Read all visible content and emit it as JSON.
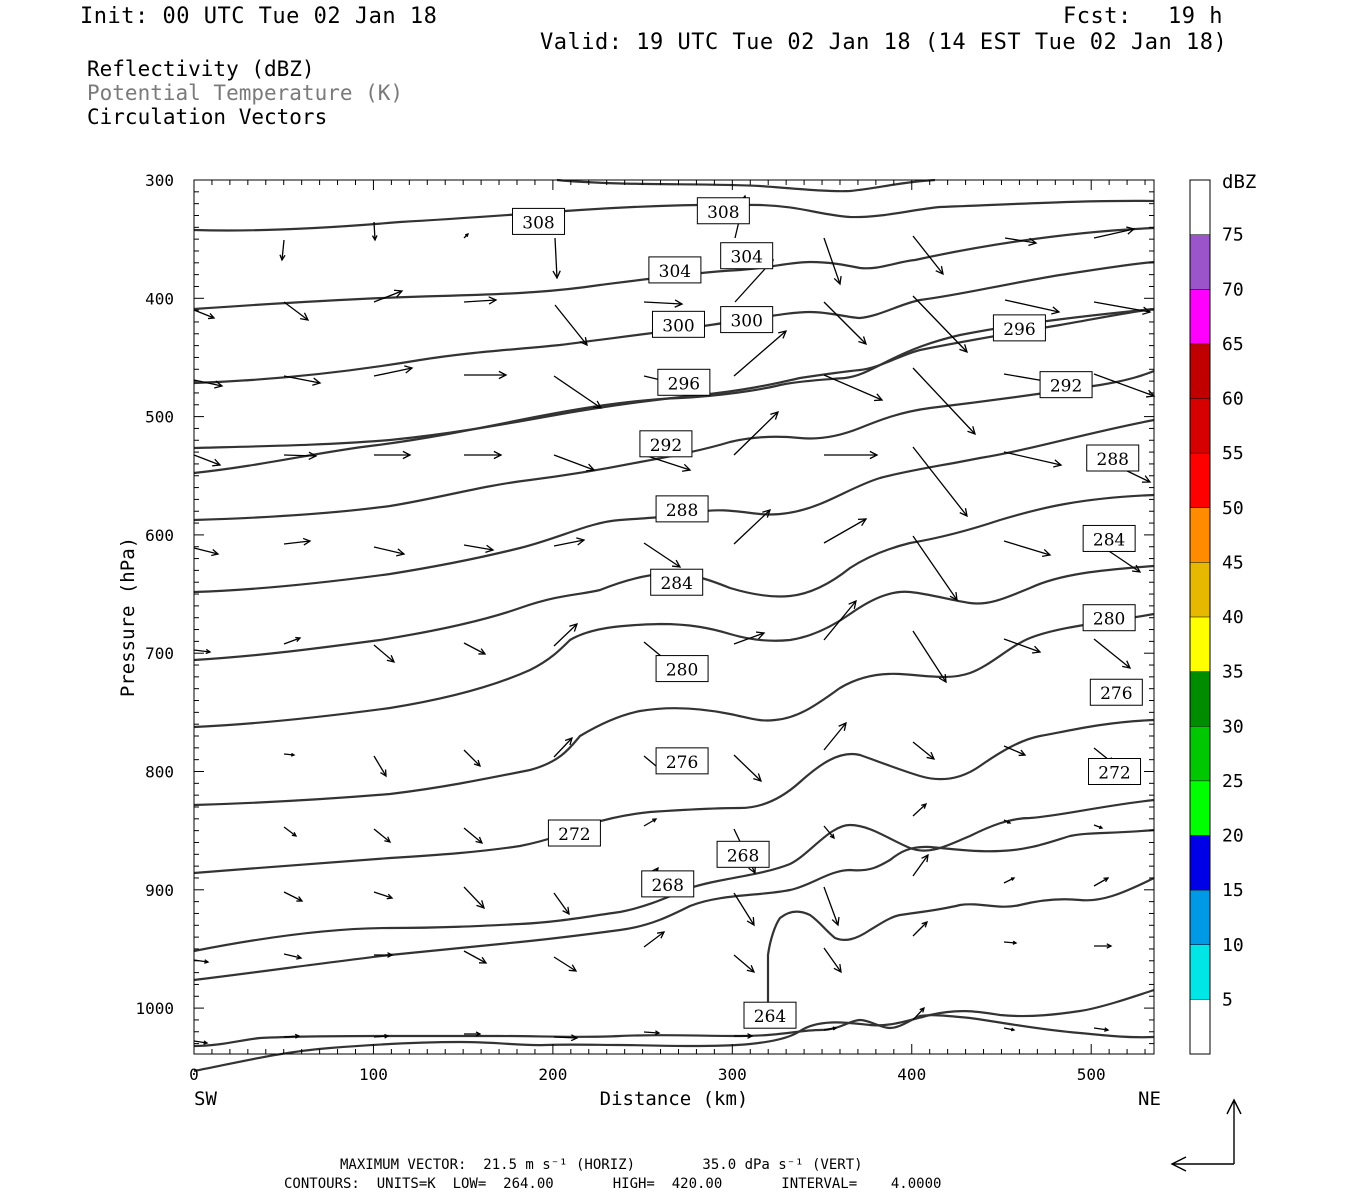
{
  "header": {
    "init": "Init: 00 UTC Tue 02 Jan 18",
    "fcst_label": "Fcst:",
    "fcst_value": "19 h",
    "valid": "Valid: 19 UTC Tue 02 Jan 18 (14 EST Tue 02 Jan 18)"
  },
  "legend": {
    "line1": "Reflectivity (dBZ)",
    "line2": "Potential Temperature (K)",
    "line3": "Circulation Vectors"
  },
  "footer": {
    "max_vector": "MAXIMUM VECTOR:  21.5 m s⁻¹ (HORIZ)        35.0 dPa s⁻¹ (VERT)",
    "contours": "CONTOURS:  UNITS=K  LOW=  264.00       HIGH=  420.00       INTERVAL=    4.0000"
  },
  "colors": {
    "contour": "#333333",
    "vector": "#000000",
    "colorbar": [
      "#00e6e6",
      "#0099e6",
      "#0000e6",
      "#00ff00",
      "#00c800",
      "#008c00",
      "#ffff00",
      "#e6b800",
      "#ff8c00",
      "#ff0000",
      "#d70000",
      "#c00000",
      "#ff00ff",
      "#9955c9",
      "#ffffff"
    ]
  },
  "chart_data": {
    "type": "line",
    "title": "",
    "xlabel": "Distance (km)",
    "ylabel": "Pressure (hPa)",
    "xlim": [
      0,
      535
    ],
    "ylim": [
      1040,
      300
    ],
    "x_ticks": [
      0,
      100,
      200,
      300,
      400,
      500
    ],
    "y_ticks": [
      300,
      400,
      500,
      600,
      700,
      800,
      900,
      1000
    ],
    "x_end_labels": {
      "left": "SW",
      "right": "NE"
    },
    "contour_labels": [
      {
        "value": "308",
        "x": 192,
        "p": 335
      },
      {
        "value": "308",
        "x": 295,
        "p": 326
      },
      {
        "value": "304",
        "x": 268,
        "p": 376
      },
      {
        "value": "304",
        "x": 308,
        "p": 364
      },
      {
        "value": "300",
        "x": 270,
        "p": 422
      },
      {
        "value": "300",
        "x": 308,
        "p": 418
      },
      {
        "value": "296",
        "x": 273,
        "p": 471
      },
      {
        "value": "296",
        "x": 460,
        "p": 425
      },
      {
        "value": "292",
        "x": 263,
        "p": 523
      },
      {
        "value": "292",
        "x": 486,
        "p": 473
      },
      {
        "value": "288",
        "x": 272,
        "p": 578
      },
      {
        "value": "288",
        "x": 512,
        "p": 535
      },
      {
        "value": "284",
        "x": 269,
        "p": 640
      },
      {
        "value": "284",
        "x": 510,
        "p": 603
      },
      {
        "value": "280",
        "x": 272,
        "p": 713
      },
      {
        "value": "280",
        "x": 510,
        "p": 670
      },
      {
        "value": "276",
        "x": 272,
        "p": 791
      },
      {
        "value": "276",
        "x": 514,
        "p": 733
      },
      {
        "value": "272",
        "x": 212,
        "p": 852
      },
      {
        "value": "272",
        "x": 513,
        "p": 800
      },
      {
        "value": "268",
        "x": 306,
        "p": 870
      },
      {
        "value": "268",
        "x": 264,
        "p": 895
      },
      {
        "value": "264",
        "x": 321,
        "p": 1006
      }
    ],
    "colorbar": {
      "title": "dBZ",
      "labels": [
        "5",
        "10",
        "15",
        "20",
        "25",
        "30",
        "35",
        "40",
        "45",
        "50",
        "55",
        "60",
        "65",
        "70",
        "75"
      ]
    }
  }
}
